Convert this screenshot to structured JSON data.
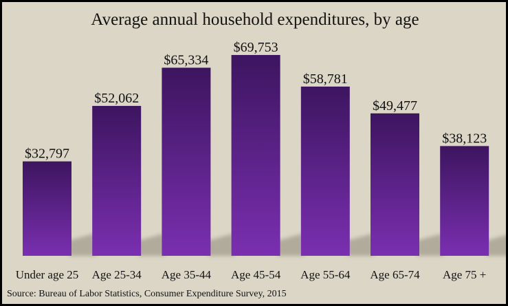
{
  "chart_data": {
    "type": "bar",
    "title": "Average annual household expenditures, by age",
    "source": "Source: Bureau of Labor Statistics, Consumer Expenditure Survey, 2015",
    "categories": [
      "Under age 25",
      "Age 25-34",
      "Age 35-44",
      "Age 45-54",
      "Age 55-64",
      "Age 65-74",
      "Age 75 +"
    ],
    "values": [
      32797,
      52062,
      65334,
      69753,
      58781,
      49477,
      38123
    ],
    "value_labels": [
      "$32,797",
      "$52,062",
      "$65,334",
      "$69,753",
      "$58,781",
      "$49,477",
      "$38,123"
    ],
    "ylim": [
      0,
      75000
    ],
    "grid": false,
    "legend": "none",
    "colors": {
      "bar_top": "#3d1560",
      "bar_bottom": "#7a2fb0",
      "background": "#dcd6c7",
      "border": "#000000"
    }
  }
}
